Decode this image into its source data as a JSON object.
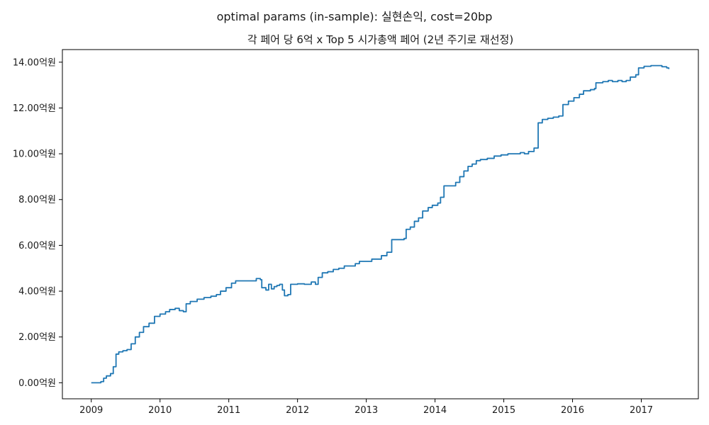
{
  "figure": {
    "suptitle": "optimal params (in-sample): 실현손익, cost=20bp"
  },
  "chart_data": {
    "type": "line",
    "title": "각 페어 당 6억 x Top 5 시가총액 페어 (2년 주기로 재선정)",
    "xlabel": "",
    "ylabel": "",
    "y_unit_suffix": "억원",
    "xlim": [
      2008.58,
      2017.83
    ],
    "ylim": [
      -0.7,
      14.55
    ],
    "x_ticks": [
      2009,
      2010,
      2011,
      2012,
      2013,
      2014,
      2015,
      2016,
      2017
    ],
    "x_tick_labels": [
      "2009",
      "2010",
      "2011",
      "2012",
      "2013",
      "2014",
      "2015",
      "2016",
      "2017"
    ],
    "y_ticks": [
      0,
      2,
      4,
      6,
      8,
      10,
      12,
      14
    ],
    "y_tick_labels": [
      "0.00억원",
      "2.00억원",
      "4.00억원",
      "6.00억원",
      "8.00억원",
      "10.00억원",
      "12.00억원",
      "14.00억원"
    ],
    "grid": false,
    "legend": "none",
    "series": [
      {
        "color": "#1f77b4",
        "points": [
          [
            2009.0,
            0.0
          ],
          [
            2009.1,
            0.0
          ],
          [
            2009.14,
            0.05
          ],
          [
            2009.18,
            0.2
          ],
          [
            2009.22,
            0.3
          ],
          [
            2009.28,
            0.4
          ],
          [
            2009.32,
            0.7
          ],
          [
            2009.36,
            1.25
          ],
          [
            2009.4,
            1.35
          ],
          [
            2009.46,
            1.4
          ],
          [
            2009.52,
            1.45
          ],
          [
            2009.58,
            1.7
          ],
          [
            2009.64,
            2.0
          ],
          [
            2009.7,
            2.2
          ],
          [
            2009.76,
            2.45
          ],
          [
            2009.84,
            2.6
          ],
          [
            2009.92,
            2.9
          ],
          [
            2010.0,
            3.0
          ],
          [
            2010.08,
            3.1
          ],
          [
            2010.14,
            3.2
          ],
          [
            2010.22,
            3.25
          ],
          [
            2010.28,
            3.15
          ],
          [
            2010.34,
            3.1
          ],
          [
            2010.38,
            3.45
          ],
          [
            2010.44,
            3.55
          ],
          [
            2010.54,
            3.65
          ],
          [
            2010.64,
            3.72
          ],
          [
            2010.74,
            3.78
          ],
          [
            2010.82,
            3.85
          ],
          [
            2010.88,
            4.0
          ],
          [
            2010.96,
            4.15
          ],
          [
            2011.04,
            4.35
          ],
          [
            2011.1,
            4.45
          ],
          [
            2011.22,
            4.45
          ],
          [
            2011.32,
            4.45
          ],
          [
            2011.4,
            4.55
          ],
          [
            2011.46,
            4.5
          ],
          [
            2011.48,
            4.15
          ],
          [
            2011.54,
            4.05
          ],
          [
            2011.58,
            4.3
          ],
          [
            2011.62,
            4.1
          ],
          [
            2011.66,
            4.2
          ],
          [
            2011.7,
            4.25
          ],
          [
            2011.74,
            4.3
          ],
          [
            2011.78,
            4.05
          ],
          [
            2011.81,
            3.8
          ],
          [
            2011.86,
            3.85
          ],
          [
            2011.9,
            4.3
          ],
          [
            2012.0,
            4.32
          ],
          [
            2012.1,
            4.3
          ],
          [
            2012.2,
            4.4
          ],
          [
            2012.26,
            4.3
          ],
          [
            2012.3,
            4.6
          ],
          [
            2012.36,
            4.8
          ],
          [
            2012.44,
            4.85
          ],
          [
            2012.52,
            4.95
          ],
          [
            2012.6,
            5.0
          ],
          [
            2012.68,
            5.1
          ],
          [
            2012.76,
            5.1
          ],
          [
            2012.84,
            5.2
          ],
          [
            2012.9,
            5.3
          ],
          [
            2013.0,
            5.3
          ],
          [
            2013.08,
            5.4
          ],
          [
            2013.16,
            5.4
          ],
          [
            2013.22,
            5.55
          ],
          [
            2013.3,
            5.7
          ],
          [
            2013.37,
            6.25
          ],
          [
            2013.46,
            6.25
          ],
          [
            2013.55,
            6.3
          ],
          [
            2013.58,
            6.7
          ],
          [
            2013.64,
            6.8
          ],
          [
            2013.7,
            7.05
          ],
          [
            2013.76,
            7.2
          ],
          [
            2013.82,
            7.5
          ],
          [
            2013.9,
            7.65
          ],
          [
            2013.96,
            7.75
          ],
          [
            2014.04,
            7.85
          ],
          [
            2014.08,
            8.1
          ],
          [
            2014.13,
            8.6
          ],
          [
            2014.22,
            8.6
          ],
          [
            2014.3,
            8.75
          ],
          [
            2014.36,
            9.0
          ],
          [
            2014.42,
            9.25
          ],
          [
            2014.48,
            9.45
          ],
          [
            2014.54,
            9.55
          ],
          [
            2014.6,
            9.7
          ],
          [
            2014.66,
            9.75
          ],
          [
            2014.76,
            9.8
          ],
          [
            2014.86,
            9.9
          ],
          [
            2014.96,
            9.95
          ],
          [
            2015.06,
            10.0
          ],
          [
            2015.16,
            10.0
          ],
          [
            2015.24,
            10.05
          ],
          [
            2015.3,
            10.0
          ],
          [
            2015.36,
            10.1
          ],
          [
            2015.44,
            10.25
          ],
          [
            2015.5,
            11.35
          ],
          [
            2015.56,
            11.5
          ],
          [
            2015.64,
            11.55
          ],
          [
            2015.72,
            11.6
          ],
          [
            2015.8,
            11.65
          ],
          [
            2015.86,
            12.15
          ],
          [
            2015.94,
            12.3
          ],
          [
            2016.02,
            12.45
          ],
          [
            2016.1,
            12.6
          ],
          [
            2016.16,
            12.75
          ],
          [
            2016.26,
            12.8
          ],
          [
            2016.32,
            12.85
          ],
          [
            2016.34,
            13.1
          ],
          [
            2016.44,
            13.15
          ],
          [
            2016.52,
            13.2
          ],
          [
            2016.58,
            13.15
          ],
          [
            2016.66,
            13.2
          ],
          [
            2016.72,
            13.15
          ],
          [
            2016.78,
            13.2
          ],
          [
            2016.84,
            13.35
          ],
          [
            2016.92,
            13.45
          ],
          [
            2016.96,
            13.75
          ],
          [
            2017.04,
            13.82
          ],
          [
            2017.14,
            13.85
          ],
          [
            2017.24,
            13.85
          ],
          [
            2017.3,
            13.8
          ],
          [
            2017.34,
            13.8
          ],
          [
            2017.37,
            13.75
          ],
          [
            2017.4,
            13.7
          ]
        ]
      }
    ]
  }
}
